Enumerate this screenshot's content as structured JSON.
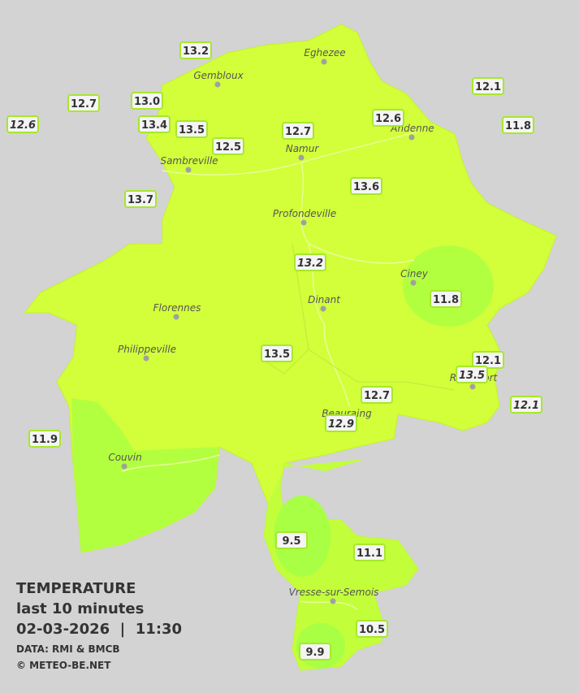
{
  "header": {
    "title": "TEMPERATURE",
    "subtitle": "last 10 minutes",
    "datetime": "02-03-2026  |  11:30",
    "source": "DATA: RMI & BMCB",
    "credit": "© METEO-BE.NET"
  },
  "cities": [
    "Eghezee",
    "Gembloux",
    "Andenne",
    "Namur",
    "Sambreville",
    "Profondeville",
    "Ciney",
    "Dinant",
    "Florennes",
    "Philippeville",
    "Rochefort",
    "Beauraing",
    "Couvin",
    "Vresse-sur-Semois"
  ],
  "stations": [
    {
      "value": "13.2"
    },
    {
      "value": "12.7"
    },
    {
      "value": "13.0"
    },
    {
      "value": "12.6",
      "italic": true
    },
    {
      "value": "13.4"
    },
    {
      "value": "13.5"
    },
    {
      "value": "12.5"
    },
    {
      "value": "12.7"
    },
    {
      "value": "12.6"
    },
    {
      "value": "12.1"
    },
    {
      "value": "11.8"
    },
    {
      "value": "13.6"
    },
    {
      "value": "13.7"
    },
    {
      "value": "13.2",
      "italic": true
    },
    {
      "value": "11.8"
    },
    {
      "value": "13.5"
    },
    {
      "value": "12.1"
    },
    {
      "value": "13.5",
      "italic": true
    },
    {
      "value": "12.1",
      "italic": true
    },
    {
      "value": "12.7"
    },
    {
      "value": "12.9",
      "italic": true
    },
    {
      "value": "11.9"
    },
    {
      "value": "9.5"
    },
    {
      "value": "11.1"
    },
    {
      "value": "10.5"
    },
    {
      "value": "9.9"
    }
  ]
}
